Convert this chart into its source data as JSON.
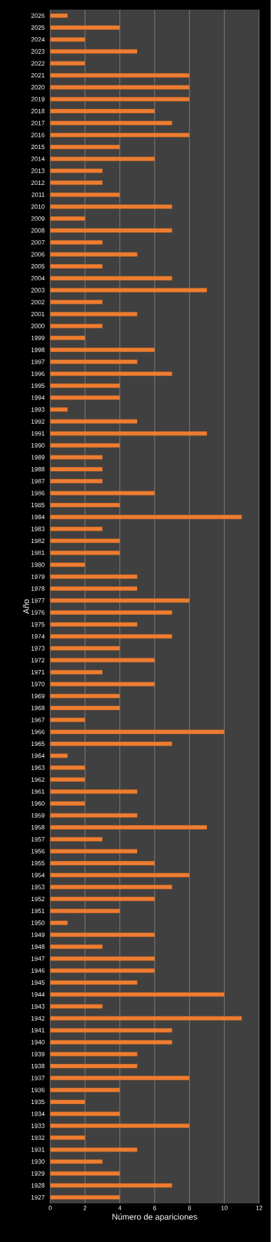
{
  "chart_data": {
    "type": "bar",
    "orientation": "horizontal",
    "xlabel": "Número de apariciones",
    "ylabel": "Año",
    "categories": [
      "2026",
      "2025",
      "2024",
      "2023",
      "2022",
      "2021",
      "2020",
      "2019",
      "2018",
      "2017",
      "2016",
      "2015",
      "2014",
      "2013",
      "2012",
      "2011",
      "2010",
      "2009",
      "2008",
      "2007",
      "2006",
      "2005",
      "2004",
      "2003",
      "2002",
      "2001",
      "2000",
      "1999",
      "1998",
      "1997",
      "1996",
      "1995",
      "1994",
      "1993",
      "1992",
      "1991",
      "1990",
      "1989",
      "1988",
      "1987",
      "1986",
      "1985",
      "1984",
      "1983",
      "1982",
      "1981",
      "1980",
      "1979",
      "1978",
      "1977",
      "1976",
      "1975",
      "1974",
      "1973",
      "1972",
      "1971",
      "1970",
      "1969",
      "1968",
      "1967",
      "1966",
      "1965",
      "1964",
      "1963",
      "1962",
      "1961",
      "1960",
      "1959",
      "1958",
      "1957",
      "1956",
      "1955",
      "1954",
      "1953",
      "1952",
      "1951",
      "1950",
      "1949",
      "1948",
      "1947",
      "1946",
      "1945",
      "1944",
      "1943",
      "1942",
      "1941",
      "1940",
      "1939",
      "1938",
      "1937",
      "1936",
      "1935",
      "1934",
      "1933",
      "1932",
      "1931",
      "1930",
      "1929",
      "1928",
      "1927"
    ],
    "values": [
      1,
      4,
      2,
      5,
      2,
      8,
      8,
      8,
      6,
      7,
      8,
      4,
      6,
      3,
      3,
      4,
      7,
      2,
      7,
      3,
      5,
      3,
      7,
      9,
      3,
      5,
      3,
      2,
      6,
      5,
      7,
      4,
      4,
      1,
      5,
      9,
      4,
      3,
      3,
      3,
      6,
      4,
      11,
      3,
      4,
      4,
      2,
      5,
      5,
      8,
      7,
      5,
      7,
      4,
      6,
      3,
      6,
      4,
      4,
      2,
      10,
      7,
      1,
      2,
      2,
      5,
      2,
      5,
      9,
      3,
      5,
      6,
      8,
      7,
      6,
      4,
      1,
      6,
      3,
      6,
      6,
      5,
      10,
      3,
      11,
      7,
      7,
      5,
      5,
      8,
      4,
      2,
      4,
      8,
      2,
      5,
      3,
      4,
      7,
      4
    ],
    "color": "#ed7d31",
    "xlim": [
      0,
      12
    ],
    "xticks": [
      0,
      2,
      4,
      6,
      8,
      10,
      12
    ],
    "grid": "x"
  }
}
